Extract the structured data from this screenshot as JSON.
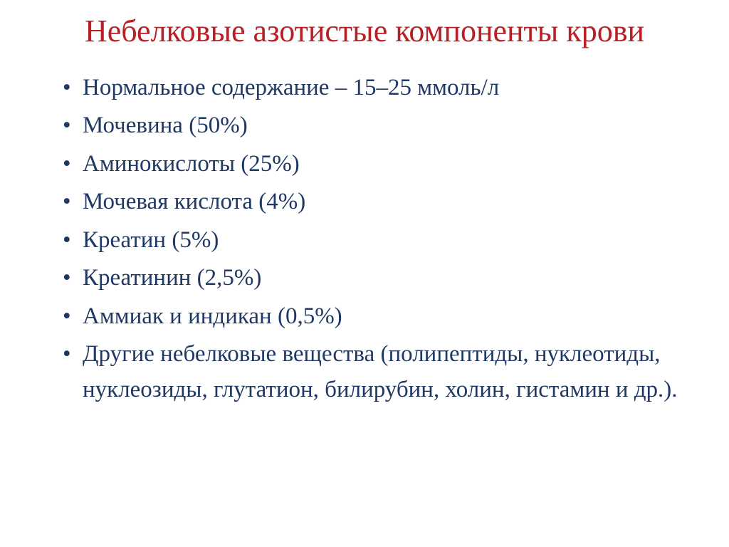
{
  "title": {
    "text": "Небелковые азотистые компоненты крови",
    "color": "#b82025",
    "fontsize": 44
  },
  "body": {
    "color": "#1f3864",
    "bullet_color": "#1f3864",
    "fontsize": 33
  },
  "bullets": [
    "Нормальное содержание – 15–25 ммоль/л",
    "Мочевина (50%)",
    "Аминокислоты (25%)",
    "Мочевая кислота (4%)",
    "Креатин (5%)",
    "Креатинин (2,5%)",
    "Аммиак и индикан (0,5%)",
    "Другие небелковые вещества (полипептиды, нуклеотиды, нуклеозиды, глутатион, билирубин, холин, гистамин и др.)."
  ]
}
